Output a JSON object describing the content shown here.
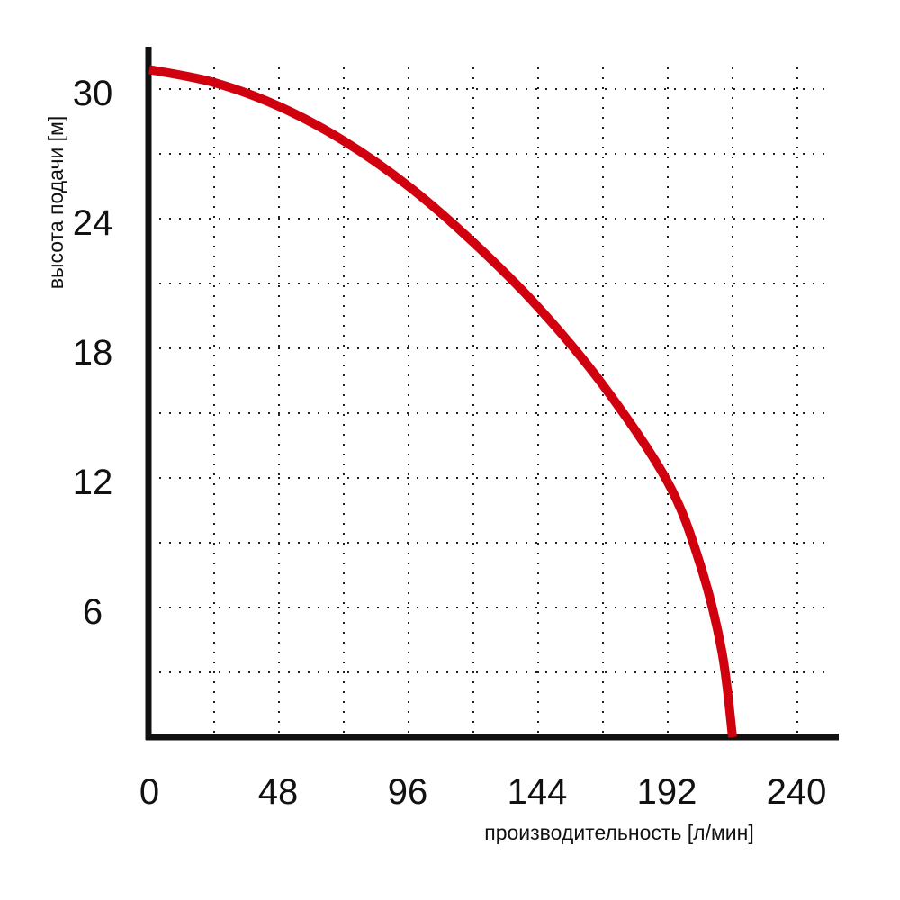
{
  "chart_data": {
    "type": "line",
    "xlabel": "производительность [л/мин]",
    "ylabel": "высота подачи [м]",
    "xlim": [
      0,
      252
    ],
    "ylim": [
      0,
      31
    ],
    "x_ticks": [
      "0",
      "48",
      "96",
      "144",
      "192",
      "240"
    ],
    "y_ticks": [
      "30",
      "24",
      "18",
      "12",
      "6"
    ],
    "grid": true,
    "grid_style": "dotted",
    "line_color": "#d0000f",
    "axis_color": "#111111",
    "series": [
      {
        "values": [
          [
            0,
            30.9
          ],
          [
            24,
            30.3
          ],
          [
            48,
            29.2
          ],
          [
            72,
            27.6
          ],
          [
            96,
            25.5
          ],
          [
            120,
            22.9
          ],
          [
            144,
            19.9
          ],
          [
            168,
            16.3
          ],
          [
            192,
            11.8
          ],
          [
            204,
            8.0
          ],
          [
            212,
            4.0
          ],
          [
            216,
            0
          ]
        ]
      }
    ]
  }
}
